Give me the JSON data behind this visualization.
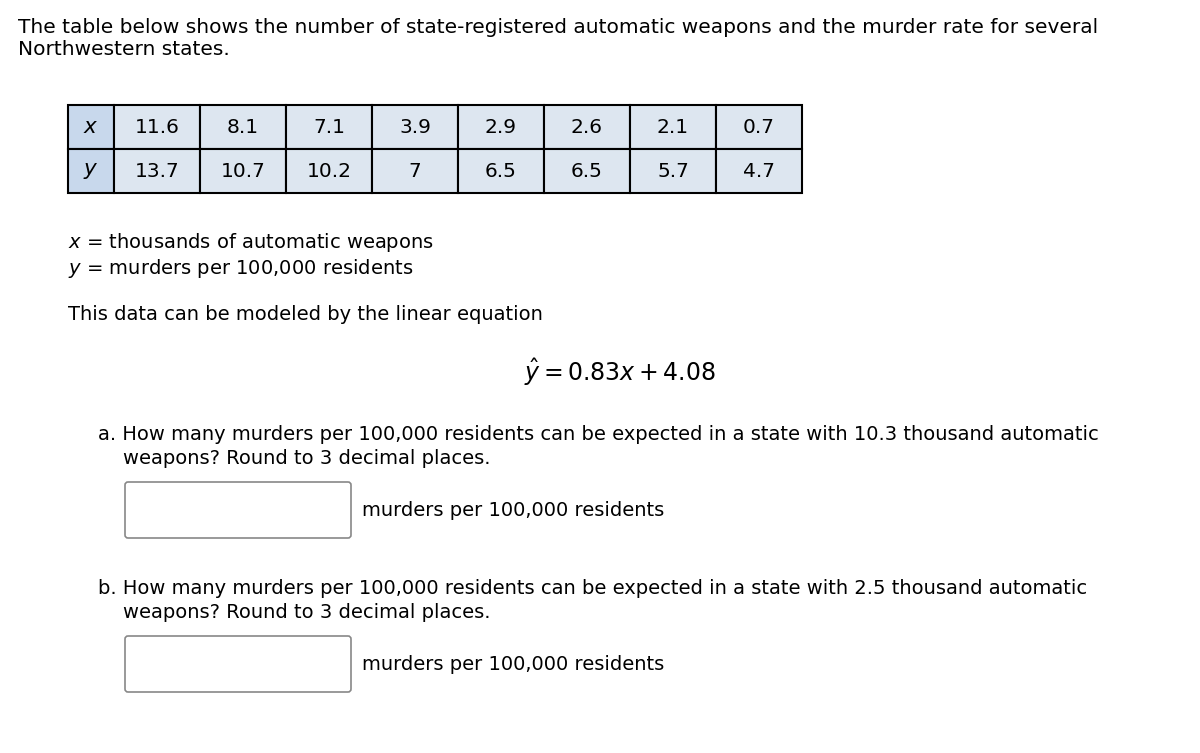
{
  "title_line1": "The table below shows the number of state-registered automatic weapons and the murder rate for several",
  "title_line2": "Northwestern states.",
  "x_values": [
    "11.6",
    "8.1",
    "7.1",
    "3.9",
    "2.9",
    "2.6",
    "2.1",
    "0.7"
  ],
  "y_values": [
    "13.7",
    "10.7",
    "10.2",
    "7",
    "6.5",
    "6.5",
    "5.7",
    "4.7"
  ],
  "x_label_math": "$x$",
  "y_label_math": "$y$",
  "x_label": "$x$ = thousands of automatic weapons",
  "y_label": "$y$ = murders per 100,000 residents",
  "model_text": "This data can be modeled by the linear equation",
  "equation": "$\\hat{y} = 0.83x + 4.08$",
  "question_a_line1": "a. How many murders per 100,000 residents can be expected in a state with 10.3 thousand automatic",
  "question_a_line2": "    weapons? Round to 3 decimal places.",
  "question_b_line1": "b. How many murders per 100,000 residents can be expected in a state with 2.5 thousand automatic",
  "question_b_line2": "    weapons? Round to 3 decimal places.",
  "answer_label": "murders per 100,000 residents",
  "bg_color": "#ffffff",
  "text_color": "#000000",
  "cell_bg": "#dde6f0",
  "label_cell_bg": "#c8d8ec",
  "table_border_color": "#000000",
  "box_edge_color": "#888888"
}
